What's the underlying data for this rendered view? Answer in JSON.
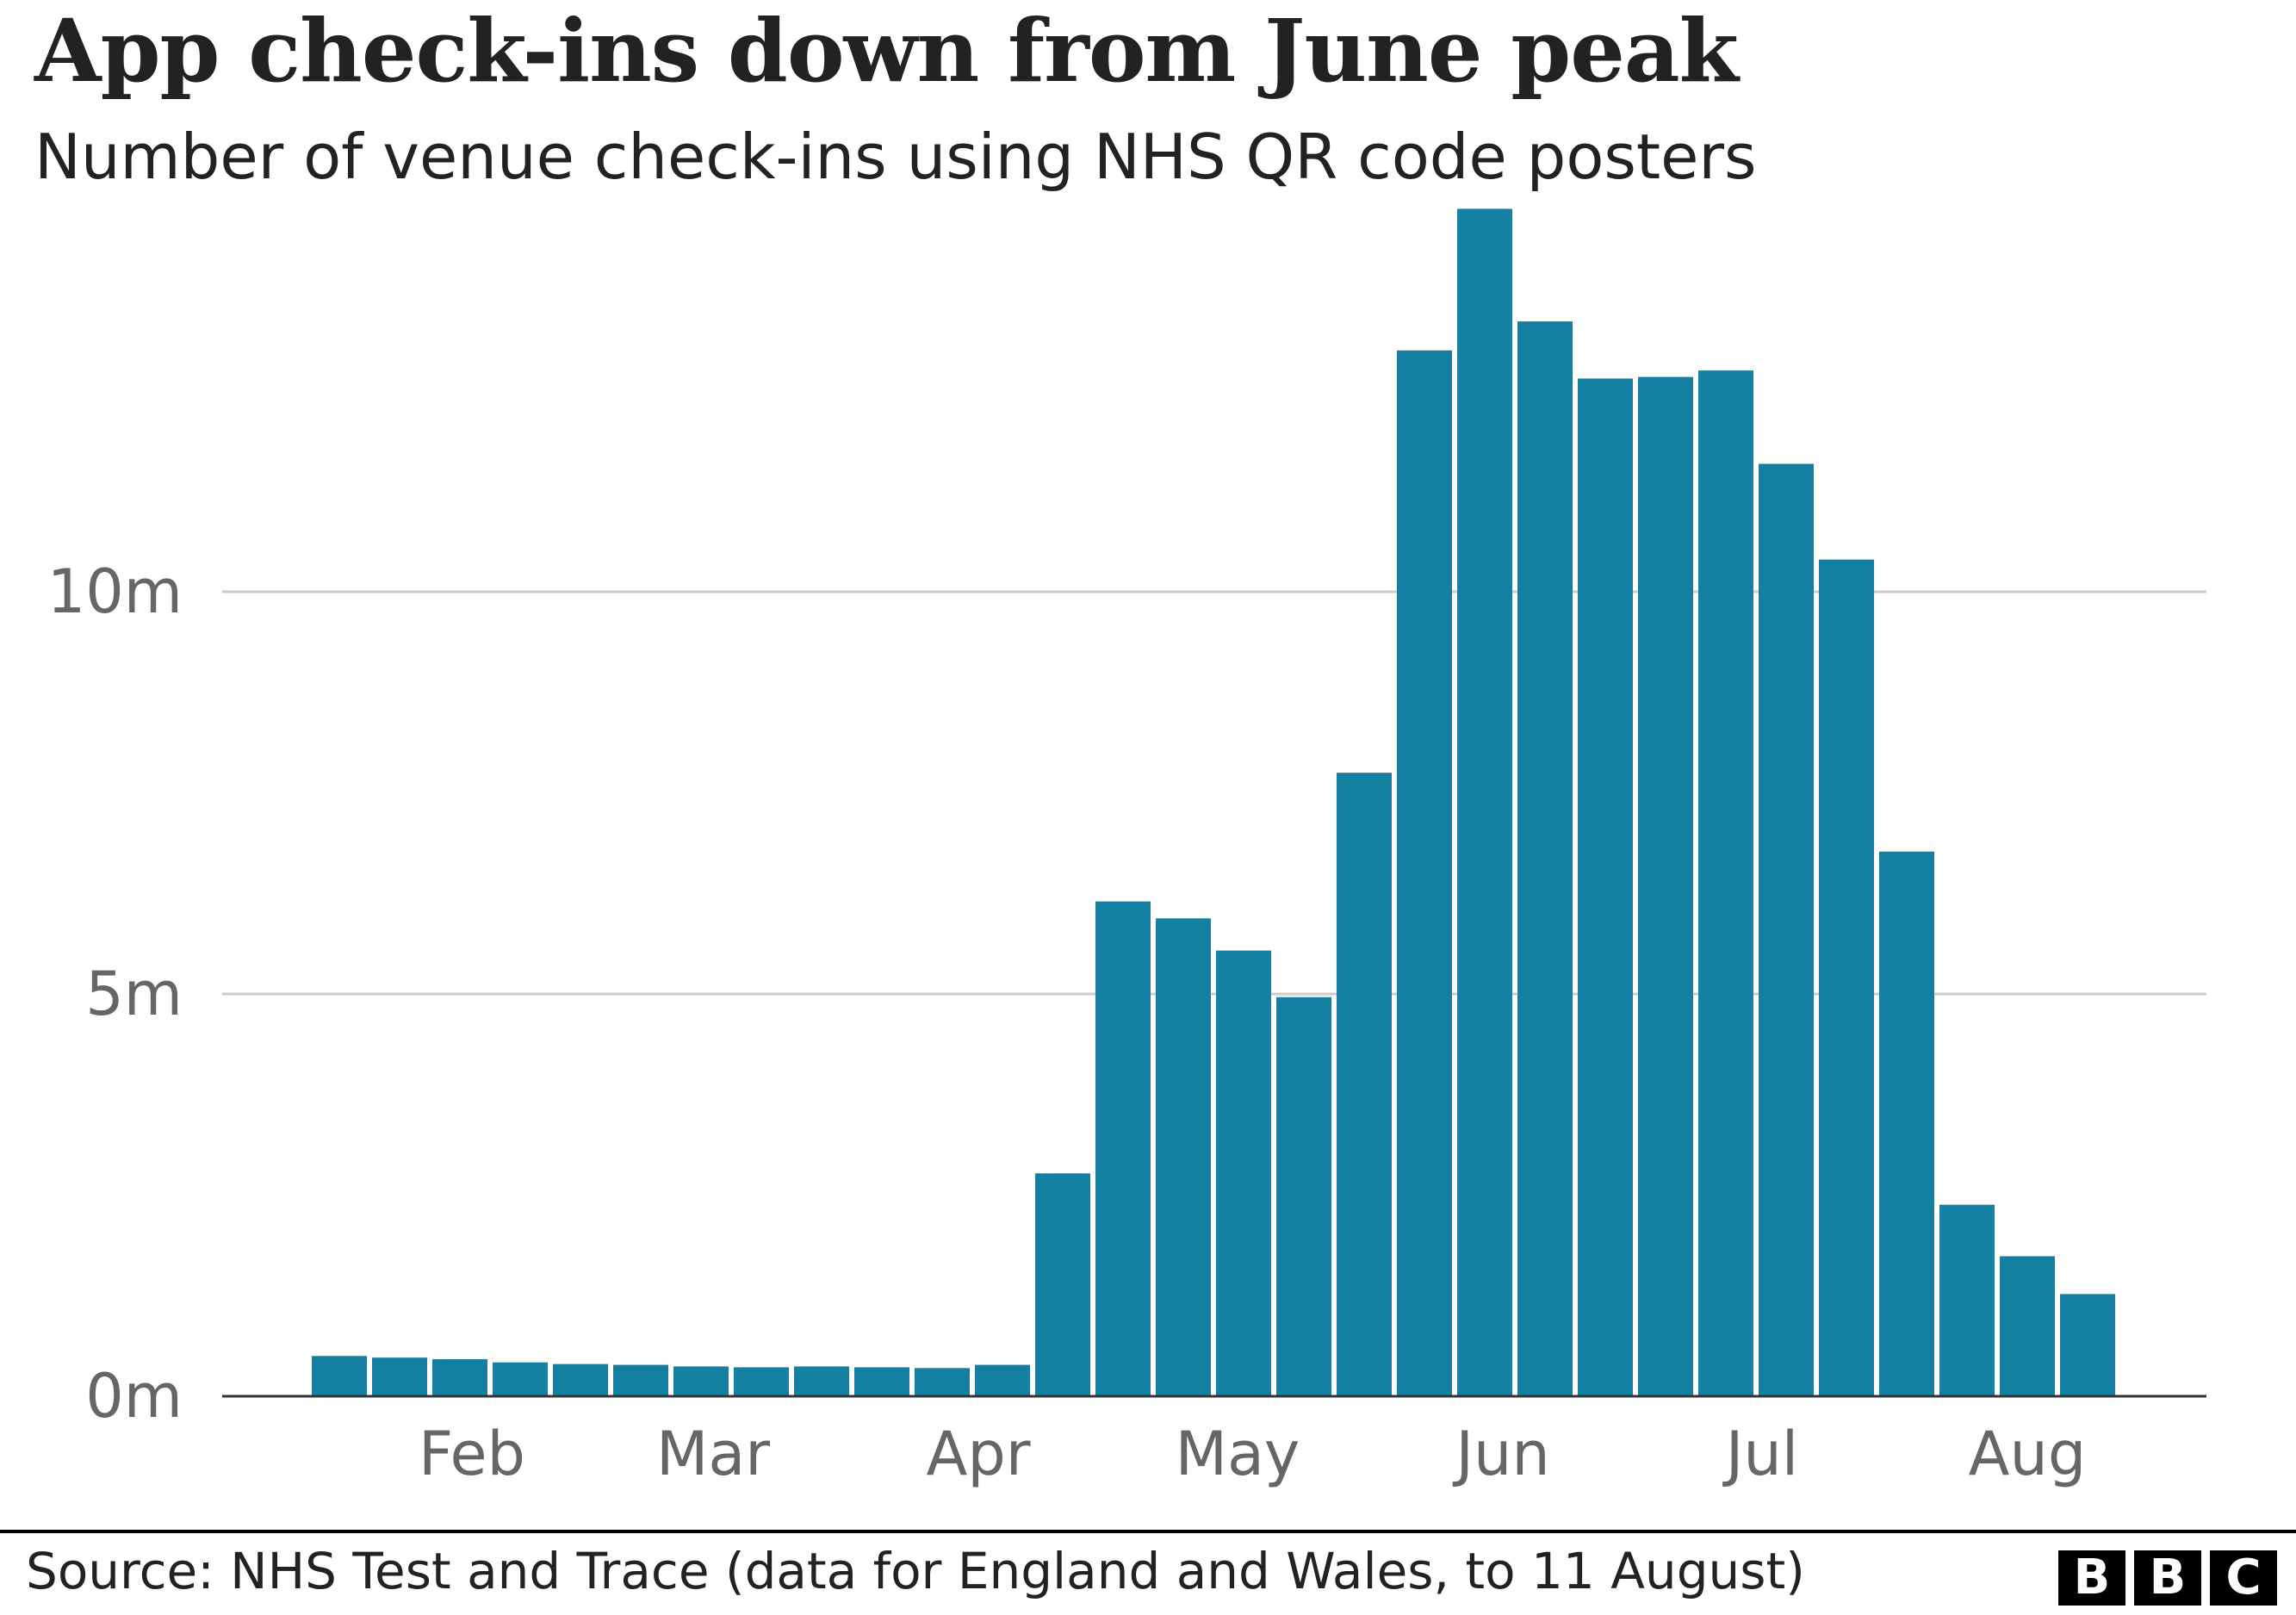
{
  "header": {
    "title": "App check-ins down from June peak",
    "subtitle": "Number of venue check-ins using NHS QR code posters"
  },
  "footer": {
    "source": "Source: NHS Test and Trace (data for England and Wales, to 11 August)",
    "logo_letters": [
      "B",
      "B",
      "C"
    ]
  },
  "colors": {
    "bar": "#1380A1",
    "grid": "#CBCBCB",
    "axis": "#333333",
    "tick_label": "#666666",
    "text": "#222222"
  },
  "chart_data": {
    "type": "bar",
    "title": "App check-ins down from June peak",
    "subtitle": "Number of venue check-ins using NHS QR code posters",
    "xlabel": "",
    "ylabel": "",
    "unit": "million check-ins",
    "ylim": [
      0,
      15
    ],
    "yticks": [
      0,
      5,
      10
    ],
    "ytick_labels": [
      "0m",
      "5m",
      "10m"
    ],
    "grid": true,
    "legend": "none",
    "x_month_labels": [
      {
        "label": "Feb",
        "position": 2.2
      },
      {
        "label": "Mar",
        "position": 6.2
      },
      {
        "label": "Apr",
        "position": 10.6
      },
      {
        "label": "May",
        "position": 14.9
      },
      {
        "label": "Jun",
        "position": 19.3
      },
      {
        "label": "Jul",
        "position": 23.6
      },
      {
        "label": "Aug",
        "position": 28.0
      }
    ],
    "values": [
      0.5,
      0.48,
      0.46,
      0.42,
      0.4,
      0.39,
      0.37,
      0.36,
      0.37,
      0.36,
      0.35,
      0.39,
      2.77,
      6.15,
      5.94,
      5.54,
      4.96,
      7.75,
      13.0,
      14.76,
      13.36,
      12.65,
      12.67,
      12.75,
      11.59,
      10.4,
      6.77,
      2.38,
      1.74,
      1.27
    ]
  }
}
